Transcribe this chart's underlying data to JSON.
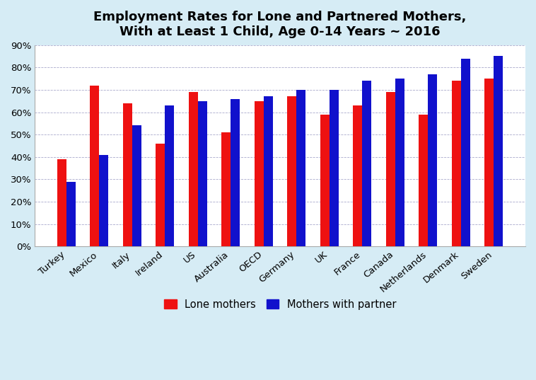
{
  "title": "Employment Rates for Lone and Partnered Mothers,\nWith at Least 1 Child, Age 0-14 Years ~ 2016",
  "categories": [
    "Turkey",
    "Mexico",
    "Italy",
    "Ireland",
    "US",
    "Australia",
    "OECD",
    "Germany",
    "UK",
    "France",
    "Canada",
    "Netherlands",
    "Denmark",
    "Sweden"
  ],
  "lone_mothers": [
    39,
    72,
    64,
    46,
    69,
    51,
    65,
    67,
    59,
    63,
    69,
    59,
    74,
    75
  ],
  "mothers_with_partner": [
    29,
    41,
    54,
    63,
    65,
    66,
    67,
    70,
    70,
    74,
    75,
    77,
    84,
    85
  ],
  "lone_color": "#EE1111",
  "partner_color": "#1111CC",
  "background_color": "#D6ECF5",
  "plot_background": "#FFFFFF",
  "ylim": [
    0,
    90
  ],
  "yticks": [
    0,
    10,
    20,
    30,
    40,
    50,
    60,
    70,
    80,
    90
  ],
  "legend_labels": [
    "Lone mothers",
    "Mothers with partner"
  ],
  "bar_width": 0.28,
  "title_fontsize": 13,
  "axis_fontsize": 9.5,
  "legend_fontsize": 10.5
}
